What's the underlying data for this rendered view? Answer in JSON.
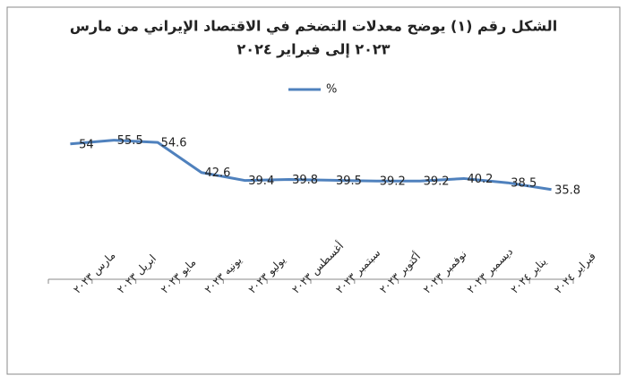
{
  "chart_data": {
    "type": "line",
    "title": [
      "الشكل رقم (١) يوضح معدلات التضخم في الاقتصاد الإيراني من مارس",
      "٢٠٢٣ إلى فبراير ٢٠٢٤"
    ],
    "categories": [
      "مارس ٢٠٢٣",
      "ابريل ٢٠٢٣",
      "مايو ٢٠٢٣",
      "يونيه ٢٠٢٣",
      "يوليو ٢٠٢٣",
      "أغسطس ٢٠٢٣",
      "سبتمبر ٢٠٢٣",
      "أكتوبر ٢٠٢٣",
      "نوفمبر ٢٠٢٣",
      "ديسمبر ٢٠٢٣",
      "يناير ٢٠٢٤",
      "فبراير ٢٠٢٤"
    ],
    "series": [
      {
        "name": "%",
        "color": "#4f81bd",
        "values": [
          54,
          55.5,
          54.6,
          42.6,
          39.4,
          39.8,
          39.5,
          39.2,
          39.2,
          40.2,
          38.5,
          35.8
        ]
      }
    ],
    "ylim": [
      0,
      70
    ]
  }
}
